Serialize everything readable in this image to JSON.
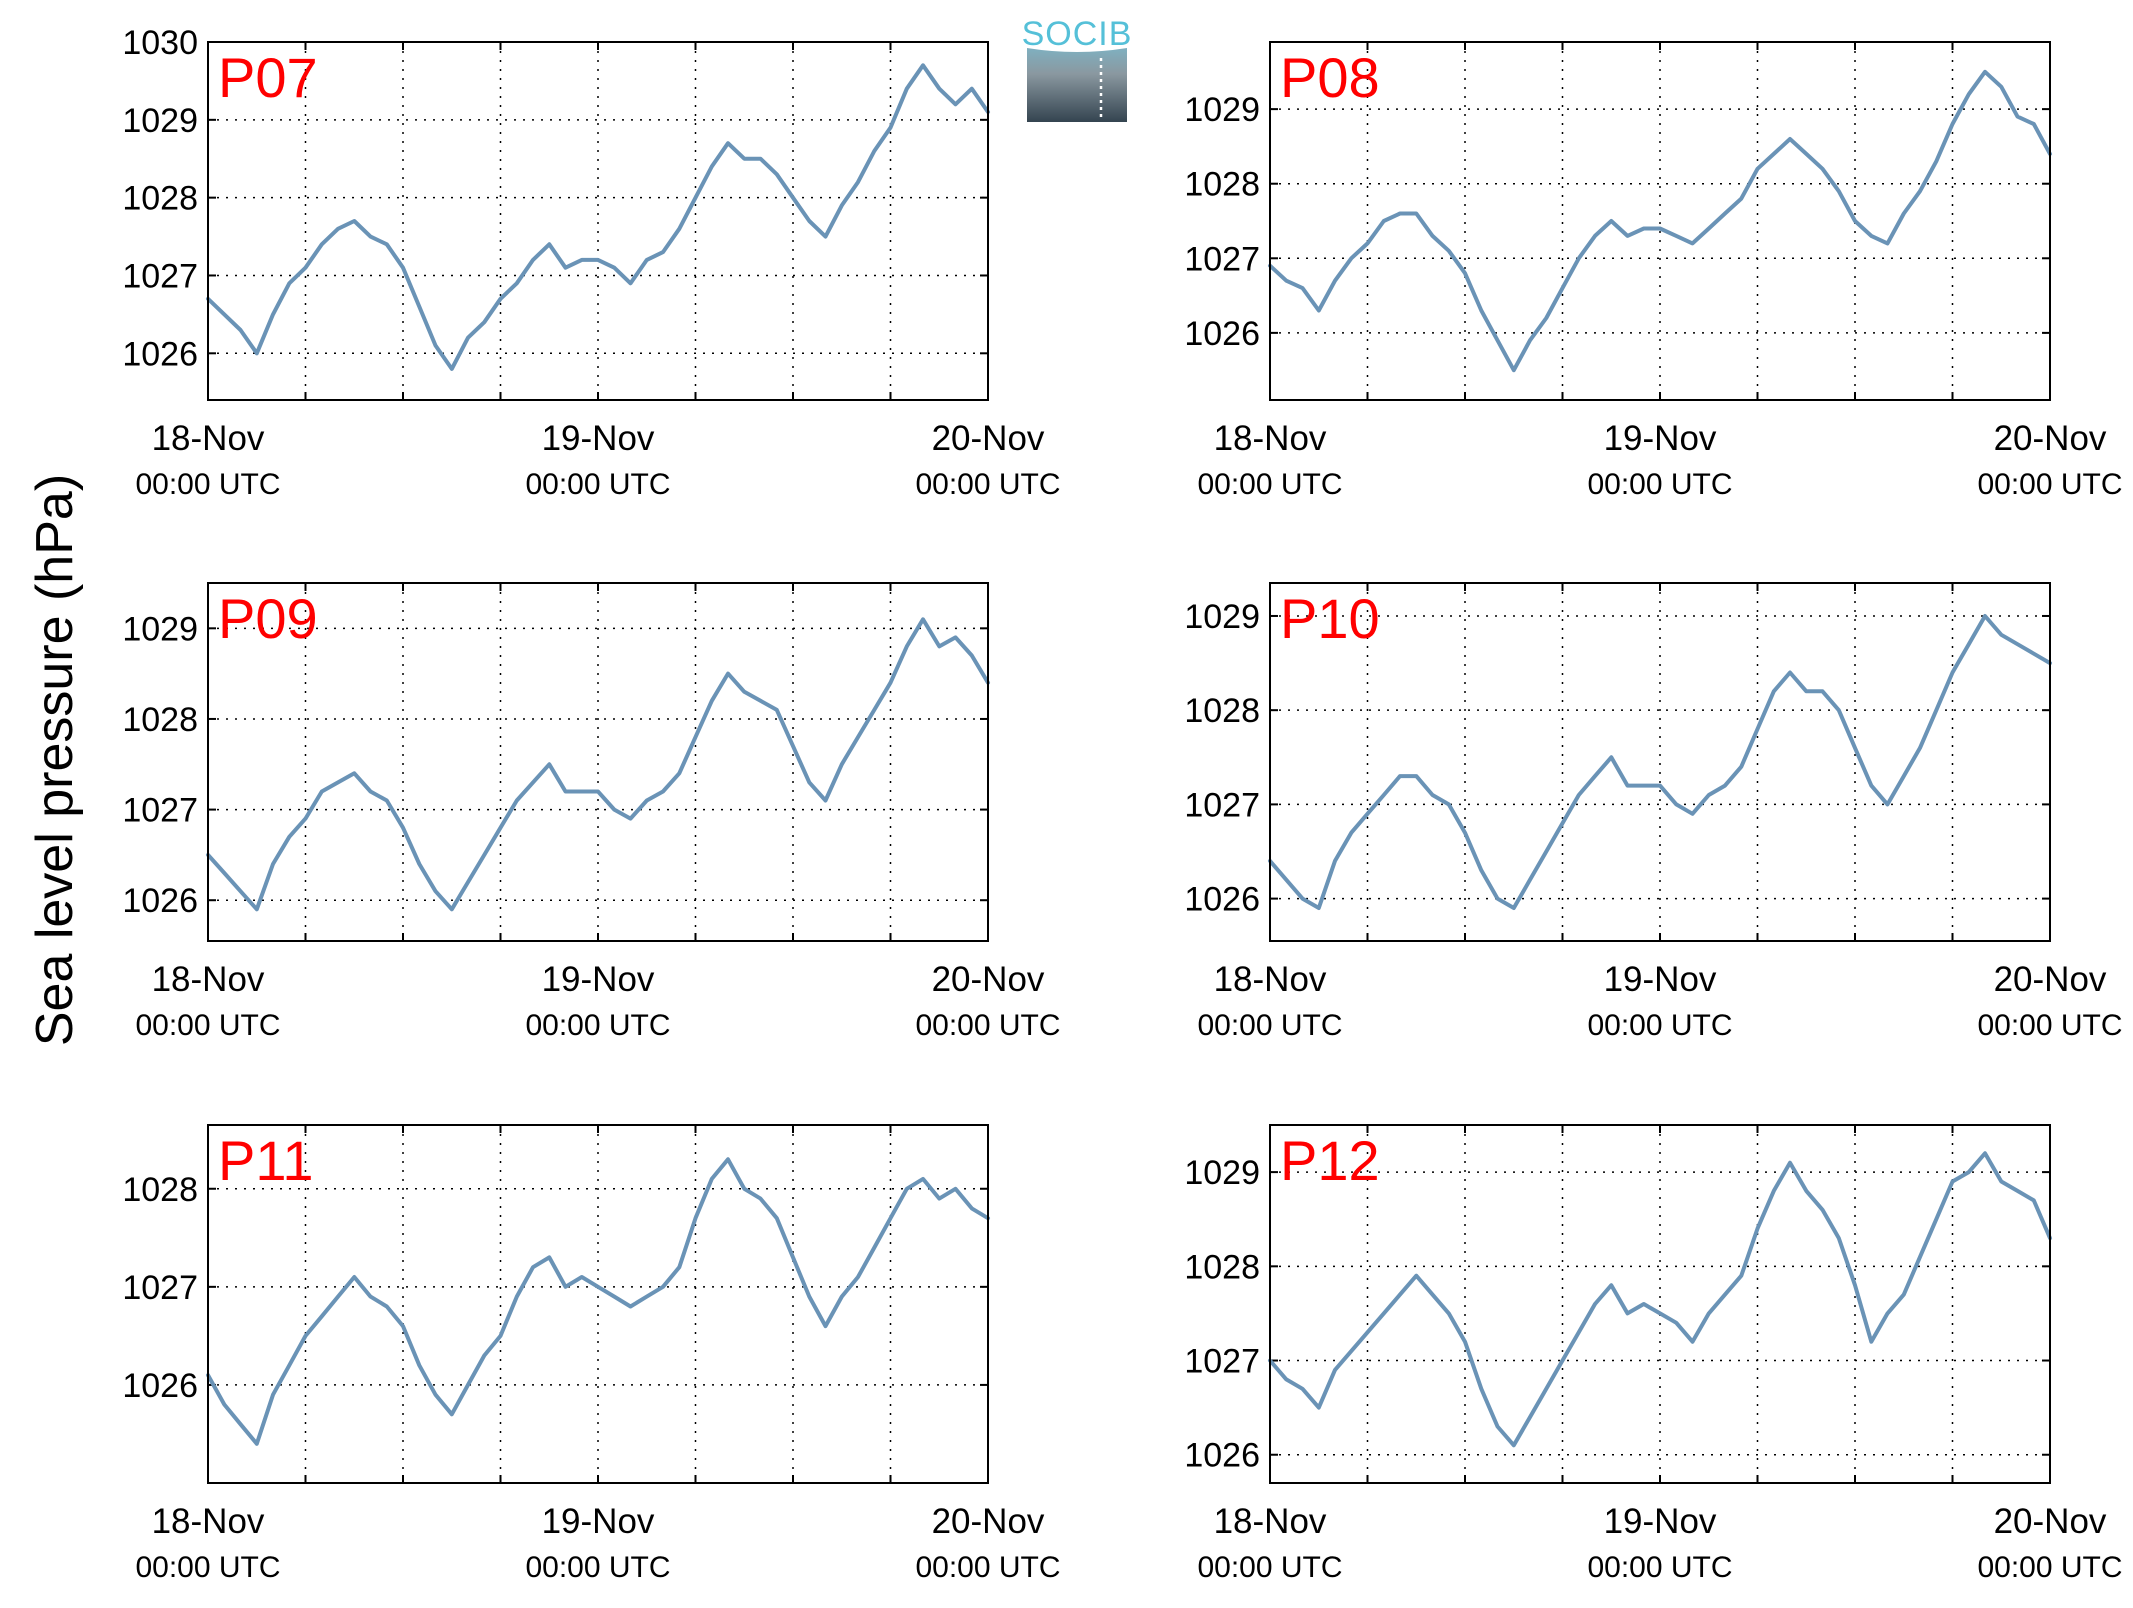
{
  "figure": {
    "ylabel": "Sea level pressure (hPa)",
    "logo_text": "SOCIB",
    "colors": {
      "line": "#6a93b6",
      "panel_label": "#ff0000",
      "axis": "#000000",
      "grid": "#000000"
    }
  },
  "chart_data": [
    {
      "type": "line",
      "title": "P07",
      "ylim": [
        1025.4,
        1030.0
      ],
      "yticks": [
        "1026",
        "1027",
        "1028",
        "1029",
        "1030"
      ],
      "xticks": [
        {
          "date": "18-Nov",
          "time": "00:00 UTC"
        },
        {
          "date": "19-Nov",
          "time": "00:00 UTC"
        },
        {
          "date": "20-Nov",
          "time": "00:00 UTC"
        }
      ],
      "xlim_hours": [
        0,
        48
      ],
      "grid": true,
      "series": [
        {
          "x": [
            0,
            1,
            2,
            3,
            4,
            5,
            6,
            7,
            8,
            9,
            10,
            11,
            12,
            13,
            14,
            15,
            16,
            17,
            18,
            19,
            20,
            21,
            22,
            23,
            24,
            25,
            26,
            27,
            28,
            29,
            30,
            31,
            32,
            33,
            34,
            35,
            36,
            37,
            38,
            39,
            40,
            41,
            42,
            43,
            44,
            45,
            46,
            47,
            48
          ],
          "y": [
            1026.7,
            1026.5,
            1026.3,
            1026.0,
            1026.5,
            1026.9,
            1027.1,
            1027.4,
            1027.6,
            1027.7,
            1027.5,
            1027.4,
            1027.1,
            1026.6,
            1026.1,
            1025.8,
            1026.2,
            1026.4,
            1026.7,
            1026.9,
            1027.2,
            1027.4,
            1027.1,
            1027.2,
            1027.2,
            1027.1,
            1026.9,
            1027.2,
            1027.3,
            1027.6,
            1028.0,
            1028.4,
            1028.7,
            1028.5,
            1028.5,
            1028.3,
            1028.0,
            1027.7,
            1027.5,
            1027.9,
            1028.2,
            1028.6,
            1028.9,
            1029.4,
            1029.7,
            1029.4,
            1029.2,
            1029.4,
            1029.1
          ]
        }
      ]
    },
    {
      "type": "line",
      "title": "P08",
      "ylim": [
        1025.1,
        1029.9
      ],
      "yticks": [
        "1026",
        "1027",
        "1028",
        "1029"
      ],
      "xticks": [
        {
          "date": "18-Nov",
          "time": "00:00 UTC"
        },
        {
          "date": "19-Nov",
          "time": "00:00 UTC"
        },
        {
          "date": "20-Nov",
          "time": "00:00 UTC"
        }
      ],
      "xlim_hours": [
        0,
        48
      ],
      "grid": true,
      "series": [
        {
          "x": [
            0,
            1,
            2,
            3,
            4,
            5,
            6,
            7,
            8,
            9,
            10,
            11,
            12,
            13,
            14,
            15,
            16,
            17,
            18,
            19,
            20,
            21,
            22,
            23,
            24,
            25,
            26,
            27,
            28,
            29,
            30,
            31,
            32,
            33,
            34,
            35,
            36,
            37,
            38,
            39,
            40,
            41,
            42,
            43,
            44,
            45,
            46,
            47,
            48
          ],
          "y": [
            1026.9,
            1026.7,
            1026.6,
            1026.3,
            1026.7,
            1027.0,
            1027.2,
            1027.5,
            1027.6,
            1027.6,
            1027.3,
            1027.1,
            1026.8,
            1026.3,
            1025.9,
            1025.5,
            1025.9,
            1026.2,
            1026.6,
            1027.0,
            1027.3,
            1027.5,
            1027.3,
            1027.4,
            1027.4,
            1027.3,
            1027.2,
            1027.4,
            1027.6,
            1027.8,
            1028.2,
            1028.4,
            1028.6,
            1028.4,
            1028.2,
            1027.9,
            1027.5,
            1027.3,
            1027.2,
            1027.6,
            1027.9,
            1028.3,
            1028.8,
            1029.2,
            1029.5,
            1029.3,
            1028.9,
            1028.8,
            1028.4
          ]
        }
      ]
    },
    {
      "type": "line",
      "title": "P09",
      "ylim": [
        1025.55,
        1029.5
      ],
      "yticks": [
        "1026",
        "1027",
        "1028",
        "1029"
      ],
      "xticks": [
        {
          "date": "18-Nov",
          "time": "00:00 UTC"
        },
        {
          "date": "19-Nov",
          "time": "00:00 UTC"
        },
        {
          "date": "20-Nov",
          "time": "00:00 UTC"
        }
      ],
      "xlim_hours": [
        0,
        48
      ],
      "grid": true,
      "series": [
        {
          "x": [
            0,
            1,
            2,
            3,
            4,
            5,
            6,
            7,
            8,
            9,
            10,
            11,
            12,
            13,
            14,
            15,
            16,
            17,
            18,
            19,
            20,
            21,
            22,
            23,
            24,
            25,
            26,
            27,
            28,
            29,
            30,
            31,
            32,
            33,
            34,
            35,
            36,
            37,
            38,
            39,
            40,
            41,
            42,
            43,
            44,
            45,
            46,
            47,
            48
          ],
          "y": [
            1026.5,
            1026.3,
            1026.1,
            1025.9,
            1026.4,
            1026.7,
            1026.9,
            1027.2,
            1027.3,
            1027.4,
            1027.2,
            1027.1,
            1026.8,
            1026.4,
            1026.1,
            1025.9,
            1026.2,
            1026.5,
            1026.8,
            1027.1,
            1027.3,
            1027.5,
            1027.2,
            1027.2,
            1027.2,
            1027.0,
            1026.9,
            1027.1,
            1027.2,
            1027.4,
            1027.8,
            1028.2,
            1028.5,
            1028.3,
            1028.2,
            1028.1,
            1027.7,
            1027.3,
            1027.1,
            1027.5,
            1027.8,
            1028.1,
            1028.4,
            1028.8,
            1029.1,
            1028.8,
            1028.9,
            1028.7,
            1028.4
          ]
        }
      ]
    },
    {
      "type": "line",
      "title": "P10",
      "ylim": [
        1025.55,
        1029.35
      ],
      "yticks": [
        "1026",
        "1027",
        "1028",
        "1029"
      ],
      "xticks": [
        {
          "date": "18-Nov",
          "time": "00:00 UTC"
        },
        {
          "date": "19-Nov",
          "time": "00:00 UTC"
        },
        {
          "date": "20-Nov",
          "time": "00:00 UTC"
        }
      ],
      "xlim_hours": [
        0,
        48
      ],
      "grid": true,
      "series": [
        {
          "x": [
            0,
            1,
            2,
            3,
            4,
            5,
            6,
            7,
            8,
            9,
            10,
            11,
            12,
            13,
            14,
            15,
            16,
            17,
            18,
            19,
            20,
            21,
            22,
            23,
            24,
            25,
            26,
            27,
            28,
            29,
            30,
            31,
            32,
            33,
            34,
            35,
            36,
            37,
            38,
            39,
            40,
            41,
            42,
            43,
            44,
            45,
            46,
            47,
            48
          ],
          "y": [
            1026.4,
            1026.2,
            1026.0,
            1025.9,
            1026.4,
            1026.7,
            1026.9,
            1027.1,
            1027.3,
            1027.3,
            1027.1,
            1027.0,
            1026.7,
            1026.3,
            1026.0,
            1025.9,
            1026.2,
            1026.5,
            1026.8,
            1027.1,
            1027.3,
            1027.5,
            1027.2,
            1027.2,
            1027.2,
            1027.0,
            1026.9,
            1027.1,
            1027.2,
            1027.4,
            1027.8,
            1028.2,
            1028.4,
            1028.2,
            1028.2,
            1028.0,
            1027.6,
            1027.2,
            1027.0,
            1027.3,
            1027.6,
            1028.0,
            1028.4,
            1028.7,
            1029.0,
            1028.8,
            1028.7,
            1028.6,
            1028.5
          ]
        }
      ]
    },
    {
      "type": "line",
      "title": "P11",
      "ylim": [
        1025.0,
        1028.65
      ],
      "yticks": [
        "1026",
        "1027",
        "1028"
      ],
      "xticks": [
        {
          "date": "18-Nov",
          "time": "00:00 UTC"
        },
        {
          "date": "19-Nov",
          "time": "00:00 UTC"
        },
        {
          "date": "20-Nov",
          "time": "00:00 UTC"
        }
      ],
      "xlim_hours": [
        0,
        48
      ],
      "grid": true,
      "series": [
        {
          "x": [
            0,
            1,
            2,
            3,
            4,
            5,
            6,
            7,
            8,
            9,
            10,
            11,
            12,
            13,
            14,
            15,
            16,
            17,
            18,
            19,
            20,
            21,
            22,
            23,
            24,
            25,
            26,
            27,
            28,
            29,
            30,
            31,
            32,
            33,
            34,
            35,
            36,
            37,
            38,
            39,
            40,
            41,
            42,
            43,
            44,
            45,
            46,
            47,
            48
          ],
          "y": [
            1026.1,
            1025.8,
            1025.6,
            1025.4,
            1025.9,
            1026.2,
            1026.5,
            1026.7,
            1026.9,
            1027.1,
            1026.9,
            1026.8,
            1026.6,
            1026.2,
            1025.9,
            1025.7,
            1026.0,
            1026.3,
            1026.5,
            1026.9,
            1027.2,
            1027.3,
            1027.0,
            1027.1,
            1027.0,
            1026.9,
            1026.8,
            1026.9,
            1027.0,
            1027.2,
            1027.7,
            1028.1,
            1028.3,
            1028.0,
            1027.9,
            1027.7,
            1027.3,
            1026.9,
            1026.6,
            1026.9,
            1027.1,
            1027.4,
            1027.7,
            1028.0,
            1028.1,
            1027.9,
            1028.0,
            1027.8,
            1027.7
          ]
        }
      ]
    },
    {
      "type": "line",
      "title": "P12",
      "ylim": [
        1025.7,
        1029.5
      ],
      "yticks": [
        "1026",
        "1027",
        "1028",
        "1029"
      ],
      "xticks": [
        {
          "date": "18-Nov",
          "time": "00:00 UTC"
        },
        {
          "date": "19-Nov",
          "time": "00:00 UTC"
        },
        {
          "date": "20-Nov",
          "time": "00:00 UTC"
        }
      ],
      "xlim_hours": [
        0,
        48
      ],
      "grid": true,
      "series": [
        {
          "x": [
            0,
            1,
            2,
            3,
            4,
            5,
            6,
            7,
            8,
            9,
            10,
            11,
            12,
            13,
            14,
            15,
            16,
            17,
            18,
            19,
            20,
            21,
            22,
            23,
            24,
            25,
            26,
            27,
            28,
            29,
            30,
            31,
            32,
            33,
            34,
            35,
            36,
            37,
            38,
            39,
            40,
            41,
            42,
            43,
            44,
            45,
            46,
            47,
            48
          ],
          "y": [
            1027.0,
            1026.8,
            1026.7,
            1026.5,
            1026.9,
            1027.1,
            1027.3,
            1027.5,
            1027.7,
            1027.9,
            1027.7,
            1027.5,
            1027.2,
            1026.7,
            1026.3,
            1026.1,
            1026.4,
            1026.7,
            1027.0,
            1027.3,
            1027.6,
            1027.8,
            1027.5,
            1027.6,
            1027.5,
            1027.4,
            1027.2,
            1027.5,
            1027.7,
            1027.9,
            1028.4,
            1028.8,
            1029.1,
            1028.8,
            1028.6,
            1028.3,
            1027.8,
            1027.2,
            1027.5,
            1027.7,
            1028.1,
            1028.5,
            1028.9,
            1029.0,
            1029.2,
            1028.9,
            1028.8,
            1028.7,
            1028.3
          ]
        }
      ]
    }
  ]
}
